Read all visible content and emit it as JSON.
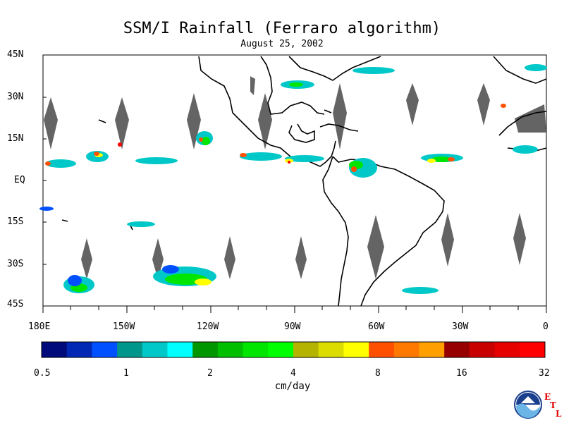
{
  "title": "SSM/I Rainfall (Ferraro algorithm)",
  "date": "August 25, 2002",
  "lat_labels": [
    "45N",
    "30N",
    "15N",
    "EQ",
    "15S",
    "30S",
    "45S"
  ],
  "lon_labels": [
    "180E",
    "150W",
    "120W",
    "90W",
    "60W",
    "30W",
    "0"
  ],
  "colorbar": {
    "colors": [
      "#000a7a",
      "#0028b4",
      "#0050ff",
      "#00968c",
      "#00c8c8",
      "#00ffff",
      "#009600",
      "#00be00",
      "#00e600",
      "#00ff00",
      "#b4b400",
      "#dcdc00",
      "#ffff00",
      "#ff5000",
      "#ff7800",
      "#ffa000",
      "#960000",
      "#c80000",
      "#e60000",
      "#ff0000"
    ],
    "tick_labels": [
      "0.5",
      "1",
      "2",
      "4",
      "8",
      "16",
      "32"
    ],
    "unit": "cm/day"
  },
  "logo": {
    "text": "NOAA",
    "etl": [
      "E",
      "T",
      "L"
    ]
  },
  "colors": {
    "land_outline": "#000000",
    "missing_data": "#646464"
  }
}
